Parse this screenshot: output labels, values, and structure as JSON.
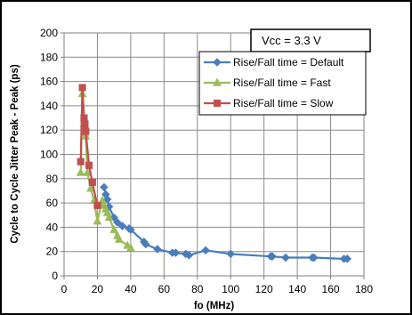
{
  "chart_data": {
    "type": "line",
    "xlabel": "fo (MHz)",
    "ylabel": "Cycle to Cycle Jitter Peak - Peak (ps)",
    "xlim": [
      0,
      180
    ],
    "ylim": [
      0,
      200
    ],
    "xticks": [
      0,
      20,
      40,
      60,
      80,
      100,
      120,
      140,
      160,
      180
    ],
    "yticks": [
      0,
      20,
      40,
      60,
      80,
      100,
      120,
      140,
      160,
      180,
      200
    ],
    "grid": true,
    "legend_position": "top-right",
    "annotation": "Vcc = 3.3 V",
    "series": [
      {
        "name": "Rise/Fall time = Default",
        "color": "#4a7ebb",
        "marker": "diamond",
        "x": [
          24,
          25,
          26,
          27,
          30,
          32,
          35,
          39,
          40,
          48,
          49,
          56,
          65,
          67,
          73,
          75,
          85,
          100,
          124,
          125,
          133,
          149,
          150,
          168,
          170
        ],
        "y": [
          73,
          67,
          63,
          57,
          48,
          44,
          41,
          39,
          38,
          28,
          26,
          22,
          19,
          19,
          18,
          17,
          21,
          18,
          16,
          16,
          15,
          15,
          15,
          14,
          14
        ]
      },
      {
        "name": "Rise/Fall time = Fast",
        "color": "#9bbb59",
        "marker": "triangle",
        "x": [
          10,
          11,
          12,
          12.5,
          13,
          14,
          16,
          18,
          20,
          23,
          24,
          25,
          26,
          27,
          30,
          32,
          33,
          38,
          40
        ],
        "y": [
          85,
          150,
          125,
          118,
          115,
          85,
          72,
          62,
          45,
          62,
          58,
          55,
          52,
          48,
          38,
          33,
          30,
          25,
          23
        ]
      },
      {
        "name": "Rise/Fall time = Slow",
        "color": "#c0504d",
        "marker": "square",
        "x": [
          10,
          11,
          12,
          12.5,
          13,
          15,
          17,
          20
        ],
        "y": [
          94,
          155,
          130,
          125,
          119,
          91,
          77,
          58
        ]
      }
    ]
  }
}
